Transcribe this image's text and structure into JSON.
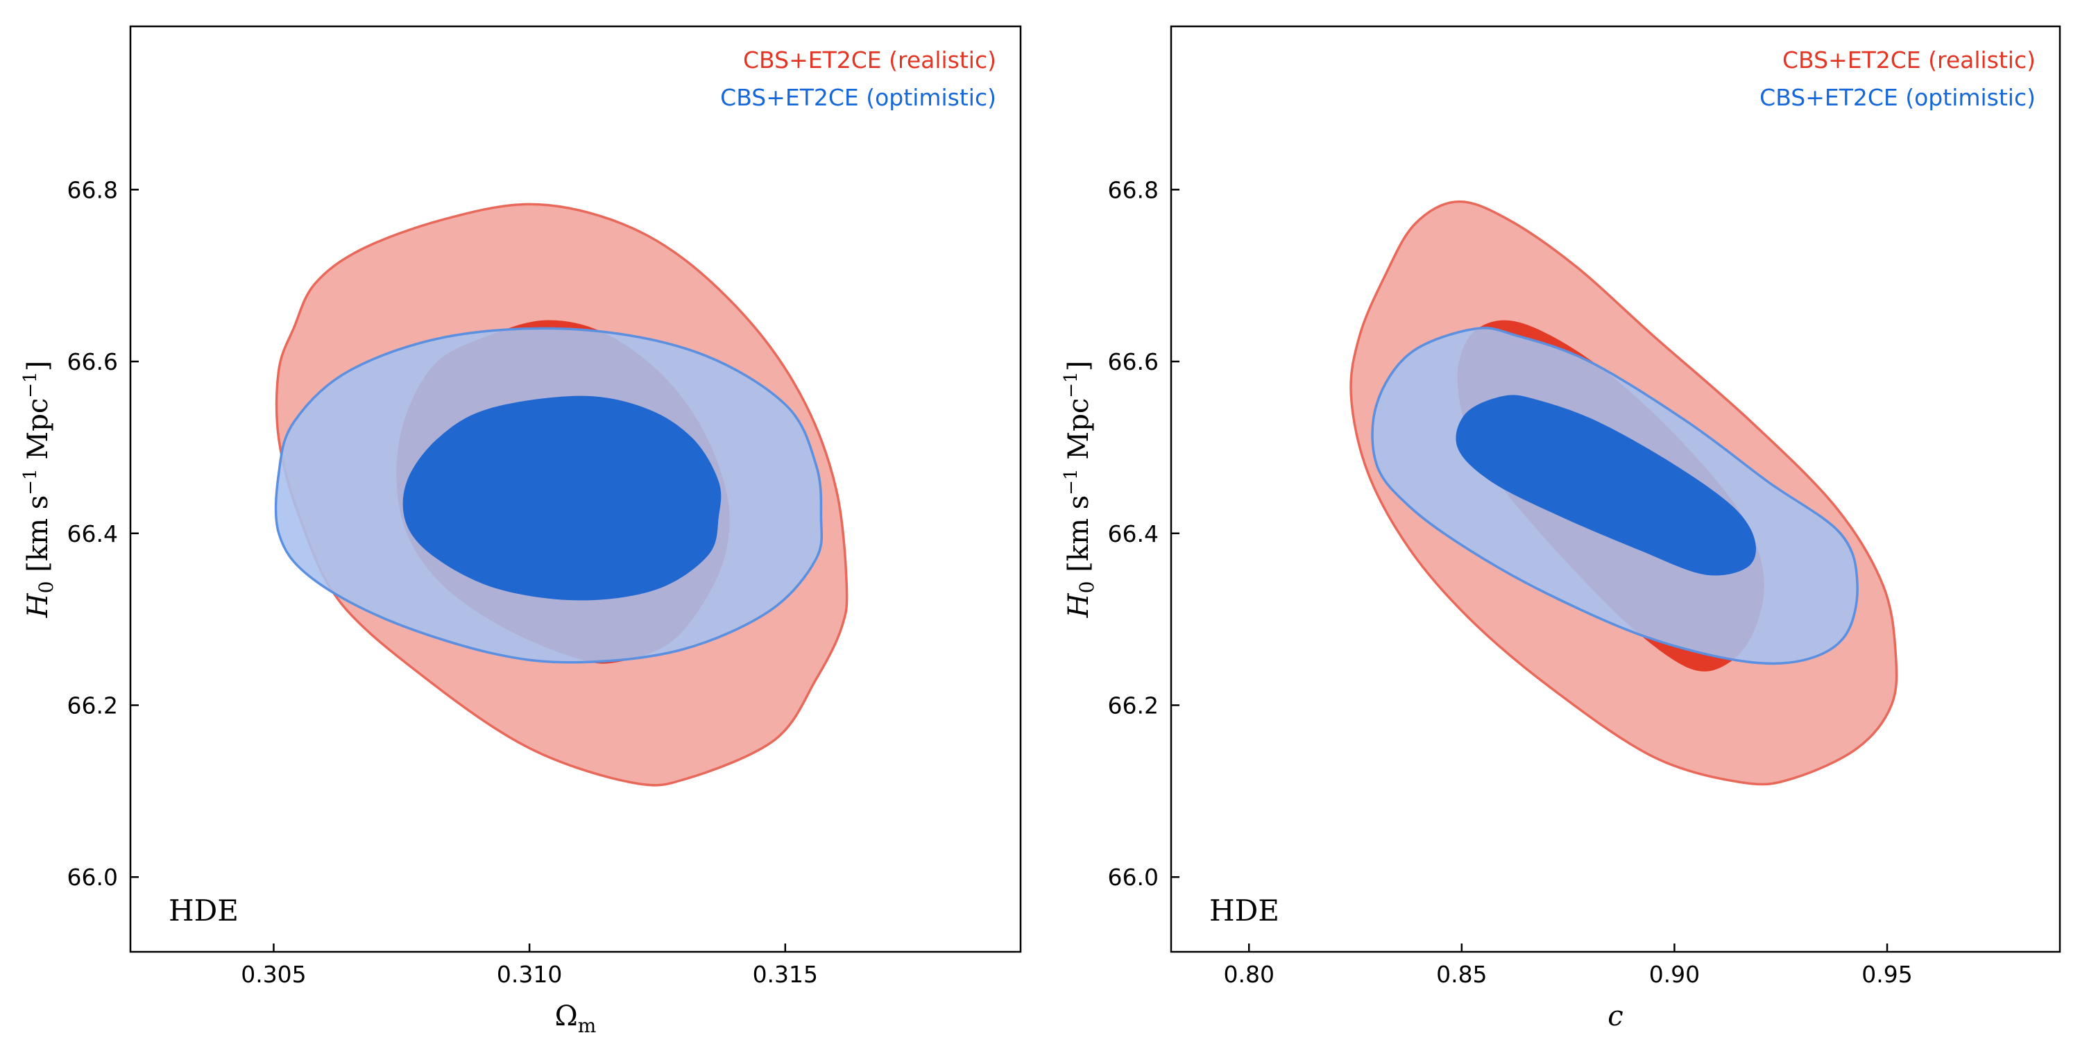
{
  "colors": {
    "realistic_outer": "#f2aea7",
    "realistic_inner": "#e23a27",
    "realistic_edge": "#e8685a",
    "optimistic_outer": "#a7c0ee",
    "optimistic_inner": "#2067d0",
    "optimistic_edge": "#5b8fe0",
    "legend_realistic": "#e33524",
    "legend_optimistic": "#1668d8"
  },
  "chart_data": [
    {
      "type": "contour",
      "xlabel": "Ω_m",
      "ylabel": "H_0 [km s^-1 Mpc^-1]",
      "annotation": "HDE",
      "xlim": [
        0.3022,
        0.3196
      ],
      "ylim": [
        65.913,
        66.99
      ],
      "xticks": [
        0.305,
        0.31,
        0.315
      ],
      "xtick_labels": [
        "0.305",
        "0.310",
        "0.315"
      ],
      "yticks": [
        66.0,
        66.2,
        66.4,
        66.6,
        66.8
      ],
      "ytick_labels": [
        "66.0",
        "66.2",
        "66.4",
        "66.6",
        "66.8"
      ],
      "legend_position": "top-right",
      "series": [
        {
          "name": "CBS+ET2CE (realistic)",
          "color_key": "realistic",
          "contours": [
            {
              "level": "2sigma",
              "points": [
                [
                  0.31,
                  66.783
                ],
                [
                  0.3083,
                  66.765
                ],
                [
                  0.3067,
                  66.73
                ],
                [
                  0.3058,
                  66.69
                ],
                [
                  0.3054,
                  66.64
                ],
                [
                  0.3051,
                  66.59
                ],
                [
                  0.3051,
                  66.51
                ],
                [
                  0.3055,
                  66.42
                ],
                [
                  0.3063,
                  66.32
                ],
                [
                  0.308,
                  66.23
                ],
                [
                  0.31,
                  66.15
                ],
                [
                  0.312,
                  66.11
                ],
                [
                  0.3131,
                  66.115
                ],
                [
                  0.3148,
                  66.16
                ],
                [
                  0.3156,
                  66.23
                ],
                [
                  0.3161,
                  66.29
                ],
                [
                  0.3162,
                  66.34
                ],
                [
                  0.316,
                  66.45
                ],
                [
                  0.3154,
                  66.55
                ],
                [
                  0.3144,
                  66.64
                ],
                [
                  0.313,
                  66.72
                ],
                [
                  0.3116,
                  66.765
                ]
              ]
            },
            {
              "level": "1sigma",
              "points": [
                [
                  0.3103,
                  66.648
                ],
                [
                  0.3092,
                  66.63
                ],
                [
                  0.3082,
                  66.6
                ],
                [
                  0.3076,
                  66.54
                ],
                [
                  0.3074,
                  66.47
                ],
                [
                  0.3076,
                  66.4
                ],
                [
                  0.3083,
                  66.34
                ],
                [
                  0.3095,
                  66.29
                ],
                [
                  0.3109,
                  66.255
                ],
                [
                  0.3117,
                  66.25
                ],
                [
                  0.3128,
                  66.275
                ],
                [
                  0.3136,
                  66.34
                ],
                [
                  0.3139,
                  66.4
                ],
                [
                  0.3138,
                  66.46
                ],
                [
                  0.3133,
                  66.53
                ],
                [
                  0.3125,
                  66.59
                ],
                [
                  0.3114,
                  66.635
                ]
              ]
            }
          ]
        },
        {
          "name": "CBS+ET2CE (optimistic)",
          "color_key": "optimistic",
          "contours": [
            {
              "level": "2sigma",
              "points": [
                [
                  0.311,
                  66.637
                ],
                [
                  0.3085,
                  66.63
                ],
                [
                  0.3065,
                  66.59
                ],
                [
                  0.3054,
                  66.53
                ],
                [
                  0.3051,
                  66.47
                ],
                [
                  0.3051,
                  66.4
                ],
                [
                  0.3057,
                  66.35
                ],
                [
                  0.3072,
                  66.3
                ],
                [
                  0.3093,
                  66.26
                ],
                [
                  0.311,
                  66.25
                ],
                [
                  0.313,
                  66.265
                ],
                [
                  0.3147,
                  66.31
                ],
                [
                  0.3156,
                  66.37
                ],
                [
                  0.3157,
                  66.42
                ],
                [
                  0.3156,
                  66.48
                ],
                [
                  0.315,
                  66.55
                ],
                [
                  0.3133,
                  66.61
                ]
              ]
            },
            {
              "level": "1sigma",
              "points": [
                [
                  0.311,
                  66.56
                ],
                [
                  0.3092,
                  66.545
                ],
                [
                  0.3082,
                  66.51
                ],
                [
                  0.3076,
                  66.46
                ],
                [
                  0.3076,
                  66.41
                ],
                [
                  0.3082,
                  66.37
                ],
                [
                  0.3094,
                  66.335
                ],
                [
                  0.311,
                  66.322
                ],
                [
                  0.3125,
                  66.335
                ],
                [
                  0.3135,
                  66.375
                ],
                [
                  0.3137,
                  66.42
                ],
                [
                  0.3137,
                  66.46
                ],
                [
                  0.3132,
                  66.51
                ],
                [
                  0.3123,
                  66.545
                ]
              ]
            }
          ]
        }
      ]
    },
    {
      "type": "contour",
      "xlabel": "c",
      "ylabel": "H_0 [km s^-1 Mpc^-1]",
      "annotation": "HDE",
      "xlim": [
        0.7817,
        0.9906
      ],
      "ylim": [
        65.913,
        66.99
      ],
      "xticks": [
        0.8,
        0.85,
        0.9,
        0.95
      ],
      "xtick_labels": [
        "0.80",
        "0.85",
        "0.90",
        "0.95"
      ],
      "yticks": [
        66.0,
        66.2,
        66.4,
        66.6,
        66.8
      ],
      "ytick_labels": [
        "66.0",
        "66.2",
        "66.4",
        "66.6",
        "66.8"
      ],
      "legend_position": "top-right",
      "series": [
        {
          "name": "CBS+ET2CE (realistic)",
          "color_key": "realistic",
          "contours": [
            {
              "level": "2sigma",
              "points": [
                [
                  0.849,
                  66.786
                ],
                [
                  0.839,
                  66.76
                ],
                [
                  0.832,
                  66.7
                ],
                [
                  0.826,
                  66.63
                ],
                [
                  0.824,
                  66.56
                ],
                [
                  0.828,
                  66.47
                ],
                [
                  0.838,
                  66.38
                ],
                [
                  0.852,
                  66.3
                ],
                [
                  0.871,
                  66.22
                ],
                [
                  0.895,
                  66.14
                ],
                [
                  0.916,
                  66.11
                ],
                [
                  0.928,
                  66.115
                ],
                [
                  0.943,
                  66.15
                ],
                [
                  0.951,
                  66.2
                ],
                [
                  0.952,
                  66.26
                ],
                [
                  0.949,
                  66.34
                ],
                [
                  0.938,
                  66.43
                ],
                [
                  0.918,
                  66.53
                ],
                [
                  0.895,
                  66.63
                ],
                [
                  0.877,
                  66.71
                ],
                [
                  0.861,
                  66.765
                ]
              ]
            },
            {
              "level": "1sigma",
              "points": [
                [
                  0.86,
                  66.648
                ],
                [
                  0.852,
                  66.63
                ],
                [
                  0.849,
                  66.58
                ],
                [
                  0.852,
                  66.51
                ],
                [
                  0.86,
                  66.45
                ],
                [
                  0.874,
                  66.37
                ],
                [
                  0.89,
                  66.29
                ],
                [
                  0.904,
                  66.242
                ],
                [
                  0.913,
                  66.25
                ],
                [
                  0.919,
                  66.29
                ],
                [
                  0.921,
                  66.35
                ],
                [
                  0.916,
                  66.42
                ],
                [
                  0.903,
                  66.5
                ],
                [
                  0.886,
                  66.58
                ],
                [
                  0.871,
                  66.63
                ]
              ]
            }
          ]
        },
        {
          "name": "CBS+ET2CE (optimistic)",
          "color_key": "optimistic",
          "contours": [
            {
              "level": "2sigma",
              "points": [
                [
                  0.853,
                  66.638
                ],
                [
                  0.838,
                  66.61
                ],
                [
                  0.83,
                  66.55
                ],
                [
                  0.83,
                  66.48
                ],
                [
                  0.838,
                  66.43
                ],
                [
                  0.852,
                  66.38
                ],
                [
                  0.87,
                  66.33
                ],
                [
                  0.893,
                  66.28
                ],
                [
                  0.915,
                  66.252
                ],
                [
                  0.93,
                  66.252
                ],
                [
                  0.94,
                  66.28
                ],
                [
                  0.943,
                  66.34
                ],
                [
                  0.939,
                  66.4
                ],
                [
                  0.922,
                  66.46
                ],
                [
                  0.903,
                  66.53
                ],
                [
                  0.88,
                  66.6
                ],
                [
                  0.863,
                  66.63
                ]
              ]
            },
            {
              "level": "1sigma",
              "points": [
                [
                  0.86,
                  66.56
                ],
                [
                  0.851,
                  66.54
                ],
                [
                  0.849,
                  66.5
                ],
                [
                  0.857,
                  66.46
                ],
                [
                  0.873,
                  66.42
                ],
                [
                  0.892,
                  66.38
                ],
                [
                  0.907,
                  66.352
                ],
                [
                  0.917,
                  66.36
                ],
                [
                  0.919,
                  66.39
                ],
                [
                  0.914,
                  66.43
                ],
                [
                  0.9,
                  66.48
                ],
                [
                  0.882,
                  66.53
                ],
                [
                  0.868,
                  66.555
                ]
              ]
            }
          ]
        }
      ]
    }
  ]
}
